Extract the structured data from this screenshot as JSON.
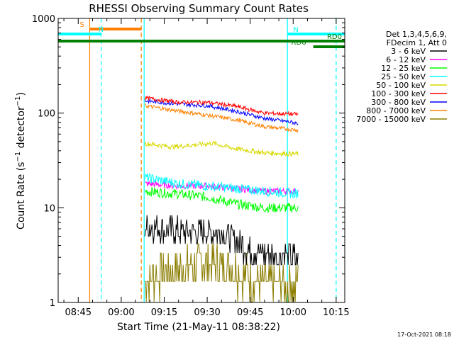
{
  "chart_data": {
    "type": "line",
    "title": "RHESSI Observing Summary Count Rates",
    "xlabel": "Start Time (21-May-11 08:38:22)",
    "ylabel": "Count Rate (s⁻¹ detector⁻¹)",
    "ylabel_main": "Count Rate (s",
    "ylabel_sup1": "−1",
    "ylabel_mid": " detector",
    "ylabel_sup2": "−1",
    "ylabel_end": ")",
    "yscale": "log",
    "ylim": [
      1,
      1000
    ],
    "xlim": [
      "08:38",
      "10:18"
    ],
    "x_ticks": [
      "08:45",
      "09:00",
      "09:15",
      "09:30",
      "09:45",
      "10:00",
      "10:15"
    ],
    "y_ticks": [
      "1",
      "10",
      "100",
      "1000"
    ],
    "legend": {
      "placement": "right",
      "header_lines": [
        "Det 1,3,4,5,6,9,",
        "FDecim 1, Att 0"
      ],
      "entries": [
        {
          "label": "3 - 6 keV",
          "color": "#000000"
        },
        {
          "label": "6 - 12 keV",
          "color": "#ff00ff"
        },
        {
          "label": "12 - 25 keV",
          "color": "#00ff00"
        },
        {
          "label": "25 - 50 keV",
          "color": "#00ffff"
        },
        {
          "label": "50 - 100 keV",
          "color": "#d8d800"
        },
        {
          "label": "100 - 300 keV",
          "color": "#ff0000"
        },
        {
          "label": "300 - 800 keV",
          "color": "#0000ff"
        },
        {
          "label": "800 - 7000 keV",
          "color": "#ff8000"
        },
        {
          "label": "7000 - 15000 keV",
          "color": "#8b7d00"
        }
      ]
    },
    "timestamp": "17-Oct-2021 08:18",
    "flags": [
      {
        "label": "S",
        "color": "#ff8000",
        "start": "08:49",
        "end": "09:07"
      },
      {
        "label": "N",
        "color": "#00ffff",
        "start": "08:38",
        "end": "08:53"
      },
      {
        "label": "N",
        "color": "#00ffff",
        "start": "09:58",
        "end": "10:18"
      },
      {
        "label": "RD0",
        "color": "#008000",
        "start": "08:38",
        "end": "10:18"
      },
      {
        "label": "RD6",
        "color": "#008000",
        "start": "10:07",
        "end": "10:18"
      }
    ],
    "vertical_markers": [
      {
        "time": "08:49",
        "color": "#ff8000",
        "style": "solid"
      },
      {
        "time": "08:53",
        "color": "#00ffff",
        "style": "dashed"
      },
      {
        "time": "09:07",
        "color": "#ff8000",
        "style": "dashed"
      },
      {
        "time": "09:08",
        "color": "#00ffff",
        "style": "solid"
      },
      {
        "time": "09:58",
        "color": "#00ffff",
        "style": "solid"
      },
      {
        "time": "10:15",
        "color": "#00ffff",
        "style": "dashed"
      }
    ],
    "data_start": "09:08",
    "data_end": "10:02",
    "series": [
      {
        "name": "3 - 6 keV",
        "color": "#000000",
        "noise": 0.35,
        "quantized": true,
        "x": [
          "09:08",
          "09:15",
          "09:25",
          "09:35",
          "09:40",
          "09:45",
          "09:50",
          "10:02"
        ],
        "y": [
          6.5,
          6.0,
          5.5,
          5.5,
          4.5,
          3.6,
          3.2,
          3.0
        ]
      },
      {
        "name": "6 - 12 keV",
        "color": "#ff00ff",
        "noise": 0.08,
        "x": [
          "09:08",
          "09:20",
          "09:30",
          "09:40",
          "09:50",
          "10:02"
        ],
        "y": [
          18,
          17,
          17,
          16,
          15,
          15
        ]
      },
      {
        "name": "12 - 25 keV",
        "color": "#00ff00",
        "noise": 0.12,
        "x": [
          "09:08",
          "09:20",
          "09:30",
          "09:40",
          "09:50",
          "10:02"
        ],
        "y": [
          15,
          14,
          13,
          11,
          10,
          10
        ]
      },
      {
        "name": "25 - 50 keV",
        "color": "#00ffff",
        "noise": 0.12,
        "x": [
          "09:08",
          "09:20",
          "09:30",
          "09:40",
          "09:50",
          "10:02"
        ],
        "y": [
          21,
          18,
          17,
          16,
          15,
          14
        ]
      },
      {
        "name": "50 - 100 keV",
        "color": "#d8d800",
        "noise": 0.06,
        "x": [
          "09:08",
          "09:18",
          "09:25",
          "09:32",
          "09:40",
          "09:50",
          "10:02"
        ],
        "y": [
          48,
          44,
          46,
          48,
          42,
          38,
          37
        ]
      },
      {
        "name": "100 - 300 keV",
        "color": "#ff0000",
        "noise": 0.05,
        "x": [
          "09:08",
          "09:20",
          "09:30",
          "09:40",
          "09:50",
          "10:02"
        ],
        "y": [
          145,
          130,
          130,
          118,
          100,
          97
        ]
      },
      {
        "name": "300 - 800 keV",
        "color": "#0000ff",
        "noise": 0.05,
        "x": [
          "09:08",
          "09:20",
          "09:30",
          "09:40",
          "09:50",
          "10:02"
        ],
        "y": [
          135,
          125,
          120,
          105,
          88,
          78
        ]
      },
      {
        "name": "800 - 7000 keV",
        "color": "#ff8000",
        "noise": 0.05,
        "x": [
          "09:08",
          "09:20",
          "09:30",
          "09:40",
          "09:50",
          "10:02"
        ],
        "y": [
          120,
          105,
          95,
          85,
          72,
          66
        ]
      },
      {
        "name": "7000 - 15000 keV",
        "color": "#8b7d00",
        "noise": 0.55,
        "quantized": true,
        "x": [
          "09:08",
          "09:20",
          "09:30",
          "09:40",
          "09:45",
          "09:50",
          "10:02"
        ],
        "y": [
          1.8,
          2.2,
          2.6,
          2.2,
          1.8,
          1.5,
          1.5
        ]
      }
    ]
  }
}
